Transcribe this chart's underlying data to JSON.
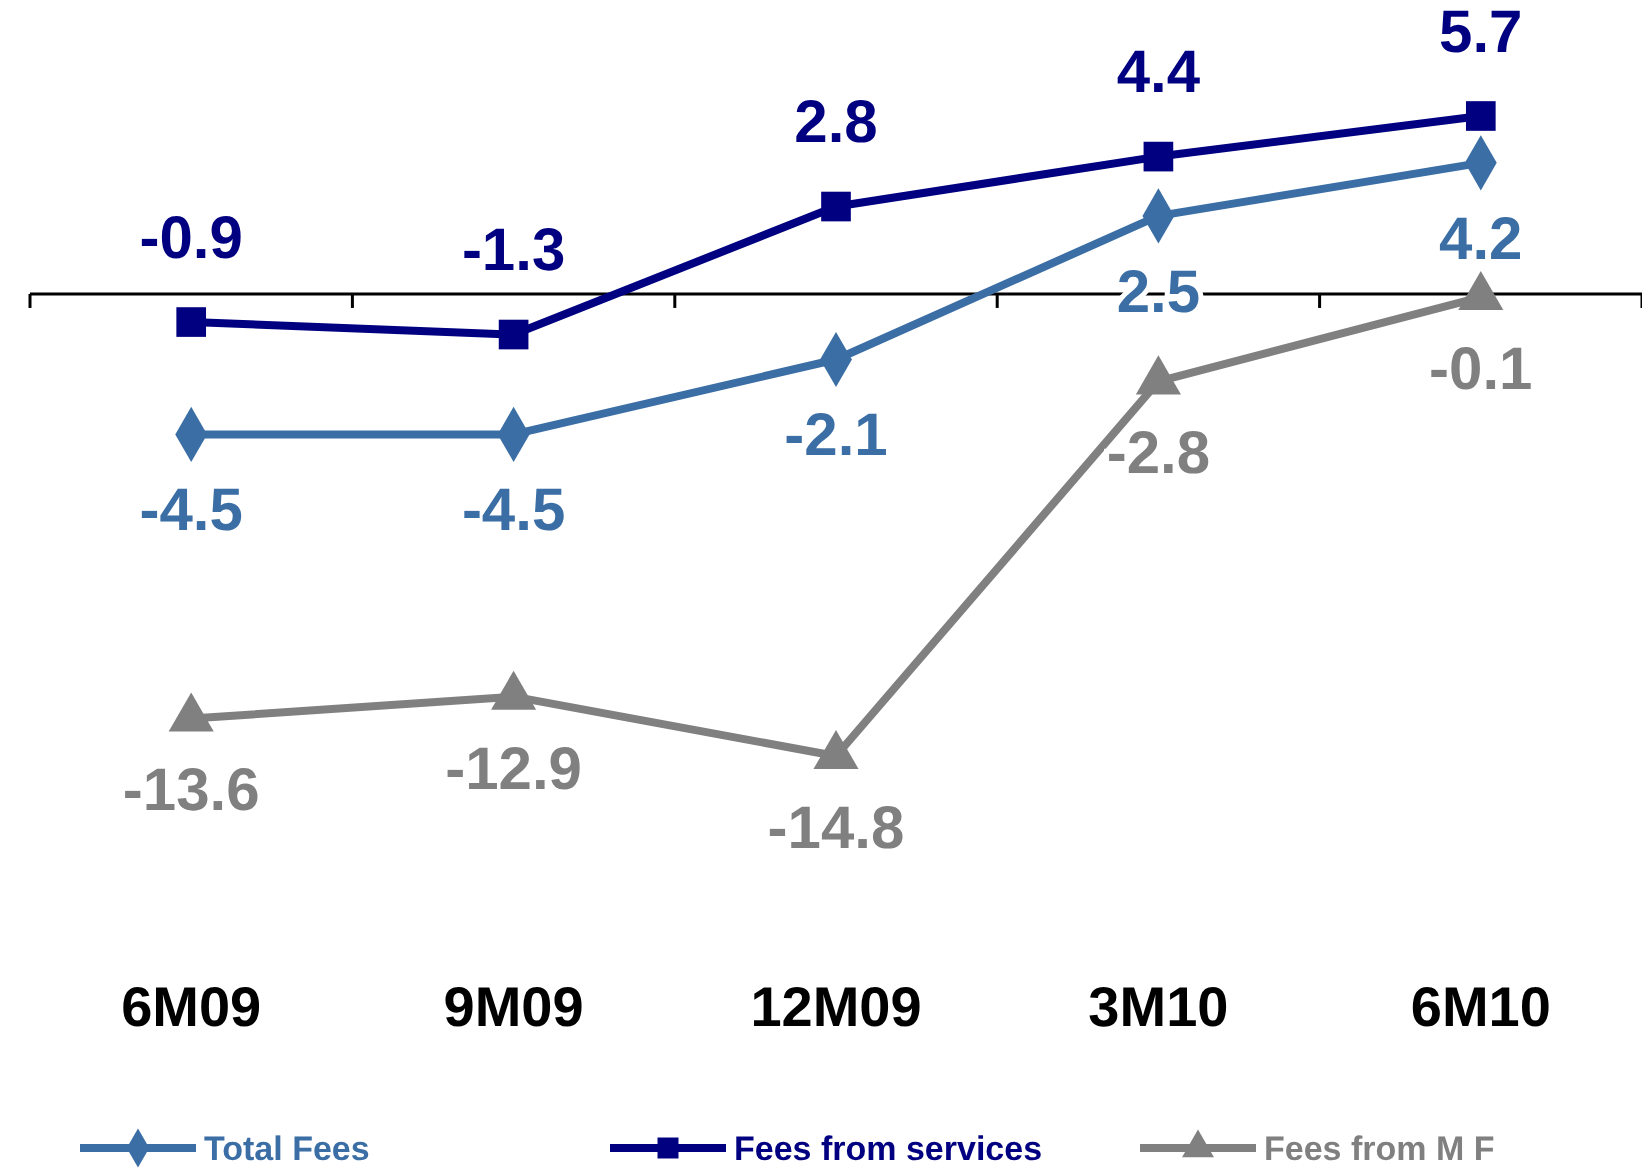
{
  "chart_data": {
    "type": "line",
    "categories": [
      "6M09",
      "9M09",
      "12M09",
      "3M10",
      "6M10"
    ],
    "series": [
      {
        "name": "Total Fees",
        "color": "#3a6ea5",
        "marker": "diamond",
        "values": [
          -4.5,
          -4.5,
          -2.1,
          2.5,
          4.2
        ]
      },
      {
        "name": "Fees from services",
        "color": "#000080",
        "marker": "square",
        "values": [
          -0.9,
          -1.3,
          2.8,
          4.4,
          5.7
        ]
      },
      {
        "name": "Fees from M F",
        "color": "#808080",
        "marker": "triangle",
        "values": [
          -13.6,
          -12.9,
          -14.8,
          -2.8,
          -0.1
        ]
      }
    ],
    "data_labels": true,
    "legend": "bottom"
  }
}
